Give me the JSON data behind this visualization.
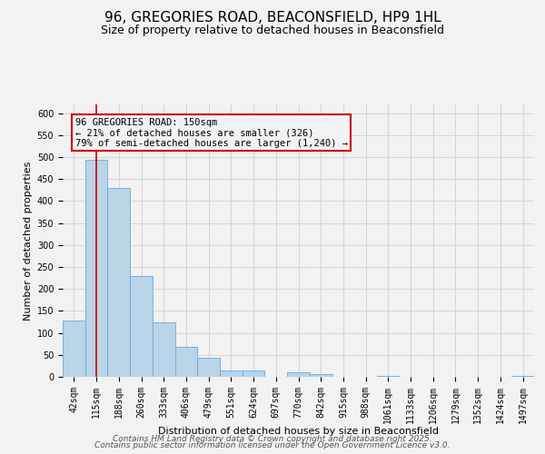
{
  "title": "96, GREGORIES ROAD, BEACONSFIELD, HP9 1HL",
  "subtitle": "Size of property relative to detached houses in Beaconsfield",
  "xlabel": "Distribution of detached houses by size in Beaconsfield",
  "ylabel": "Number of detached properties",
  "bar_labels": [
    "42sqm",
    "115sqm",
    "188sqm",
    "260sqm",
    "333sqm",
    "406sqm",
    "479sqm",
    "551sqm",
    "624sqm",
    "697sqm",
    "770sqm",
    "842sqm",
    "915sqm",
    "988sqm",
    "1061sqm",
    "1133sqm",
    "1206sqm",
    "1279sqm",
    "1352sqm",
    "1424sqm",
    "1497sqm"
  ],
  "bar_values": [
    128,
    493,
    430,
    230,
    123,
    68,
    44,
    15,
    15,
    0,
    10,
    7,
    0,
    0,
    3,
    0,
    0,
    0,
    0,
    0,
    2
  ],
  "bar_color": "#bad4e8",
  "bar_edge_color": "#6aaad4",
  "ylim": [
    0,
    620
  ],
  "yticks": [
    0,
    50,
    100,
    150,
    200,
    250,
    300,
    350,
    400,
    450,
    500,
    550,
    600
  ],
  "vline_color": "#cc0000",
  "vline_pos": 1.48,
  "annotation_text_line1": "96 GREGORIES ROAD: 150sqm",
  "annotation_text_line2": "← 21% of detached houses are smaller (326)",
  "annotation_text_line3": "79% of semi-detached houses are larger (1,240) →",
  "bg_color": "#f2f2f2",
  "grid_color": "#d0d0d0",
  "footer_line1": "Contains HM Land Registry data © Crown copyright and database right 2025.",
  "footer_line2": "Contains public sector information licensed under the Open Government Licence v3.0.",
  "title_fontsize": 11,
  "subtitle_fontsize": 9,
  "axis_label_fontsize": 8,
  "tick_fontsize": 7,
  "annotation_fontsize": 7.5,
  "footer_fontsize": 6.5
}
